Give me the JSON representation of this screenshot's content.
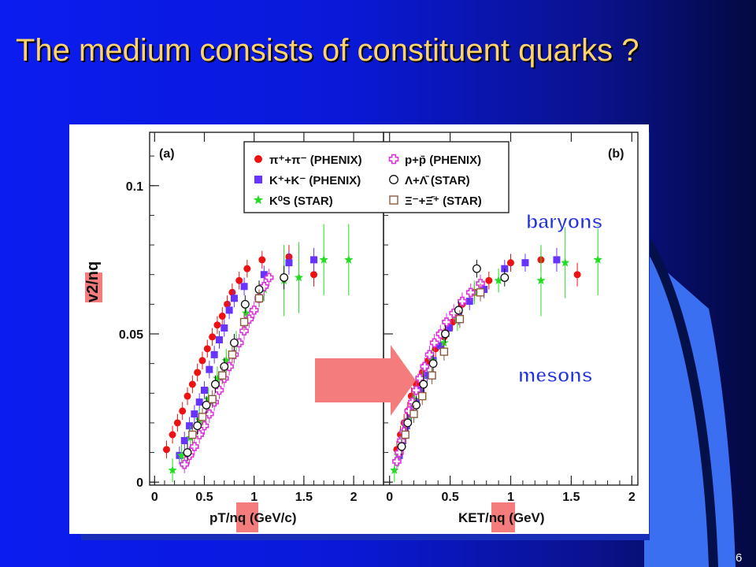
{
  "slide": {
    "title": "The medium consists of constituent quarks ?",
    "page_number": "6"
  },
  "colors": {
    "background": "#0b1cf0",
    "title": "#ffd36b",
    "pion": "#ee1111",
    "kaon": "#6633ff",
    "k0s": "#22dd22",
    "proton": "#dd33dd",
    "lambda": "#111111",
    "xi": "#8b5a3c",
    "highlight": "#f47c7c",
    "label": "#2233dd"
  },
  "chart_data": [
    {
      "panel_label": "(a)",
      "type": "scatter",
      "xlabel": "pT/nq (GeV/c)",
      "ylabel": "v2/nq",
      "xlim": [
        -0.05,
        2.3
      ],
      "ylim": [
        -0.001,
        0.118
      ],
      "x_ticks": [
        "0",
        "0.5",
        "1",
        "1.5",
        "2"
      ],
      "y_ticks": [
        "0",
        "0.05",
        "0.1"
      ],
      "grid": false,
      "legend_position": "top",
      "legend": [
        "π⁺+π⁻ (PHENIX)",
        "p+p̄ (PHENIX)",
        "K⁺+K⁻ (PHENIX)",
        "Λ+Λ̄ (STAR)",
        "K⁰S (STAR)",
        "Ξ⁻+Ξ̄⁺ (STAR)"
      ],
      "series": [
        {
          "name": "π⁺+π⁻ (PHENIX)",
          "marker": "circle",
          "x": [
            0.12,
            0.18,
            0.23,
            0.28,
            0.33,
            0.38,
            0.43,
            0.48,
            0.53,
            0.58,
            0.63,
            0.68,
            0.73,
            0.78,
            0.85,
            0.93,
            1.08,
            1.35,
            1.6
          ],
          "y": [
            0.011,
            0.016,
            0.02,
            0.024,
            0.029,
            0.033,
            0.037,
            0.041,
            0.045,
            0.049,
            0.053,
            0.056,
            0.06,
            0.064,
            0.068,
            0.072,
            0.075,
            0.076,
            0.07
          ]
        },
        {
          "name": "K⁺+K⁻ (PHENIX)",
          "marker": "square",
          "x": [
            0.25,
            0.3,
            0.35,
            0.4,
            0.45,
            0.5,
            0.55,
            0.6,
            0.65,
            0.7,
            0.75,
            0.8,
            0.9,
            1.1,
            1.35,
            1.6
          ],
          "y": [
            0.009,
            0.014,
            0.019,
            0.023,
            0.027,
            0.031,
            0.038,
            0.043,
            0.048,
            0.052,
            0.058,
            0.062,
            0.066,
            0.07,
            0.074,
            0.075
          ]
        },
        {
          "name": "K⁰S (STAR)",
          "marker": "star",
          "x": [
            0.18,
            0.27,
            0.36,
            0.45,
            0.54,
            0.63,
            0.72,
            0.82,
            0.92,
            1.1,
            1.3,
            1.45,
            1.7,
            1.95
          ],
          "y": [
            0.004,
            0.009,
            0.015,
            0.021,
            0.028,
            0.035,
            0.041,
            0.047,
            0.057,
            0.065,
            0.068,
            0.069,
            0.075,
            0.075
          ]
        },
        {
          "name": "p+p̄ (PHENIX)",
          "marker": "cross",
          "x": [
            0.3,
            0.35,
            0.4,
            0.45,
            0.5,
            0.55,
            0.6,
            0.65,
            0.7,
            0.75,
            0.8,
            0.85,
            0.9,
            0.95,
            1.0,
            1.05,
            1.1,
            1.15
          ],
          "y": [
            0.006,
            0.009,
            0.012,
            0.016,
            0.019,
            0.023,
            0.027,
            0.031,
            0.035,
            0.039,
            0.043,
            0.047,
            0.051,
            0.055,
            0.058,
            0.062,
            0.066,
            0.069
          ]
        },
        {
          "name": "Λ+Λ̄ (STAR)",
          "marker": "circle-open",
          "x": [
            0.33,
            0.43,
            0.52,
            0.61,
            0.7,
            0.8,
            0.91,
            1.05,
            1.3
          ],
          "y": [
            0.01,
            0.019,
            0.026,
            0.033,
            0.039,
            0.047,
            0.06,
            0.065,
            0.069
          ]
        },
        {
          "name": "Ξ⁻+Ξ̄⁺ (STAR)",
          "marker": "square-open",
          "x": [
            0.38,
            0.48,
            0.58,
            0.68,
            0.78,
            0.9,
            1.05
          ],
          "y": [
            0.016,
            0.022,
            0.028,
            0.036,
            0.043,
            0.054,
            0.062
          ]
        }
      ]
    },
    {
      "panel_label": "(b)",
      "type": "scatter",
      "xlabel": "KET/nq (GeV)",
      "ylabel": "",
      "xlim": [
        -0.05,
        2.05
      ],
      "ylim": [
        -0.001,
        0.118
      ],
      "x_ticks": [
        "0",
        "0.5",
        "1",
        "1.5",
        "2"
      ],
      "annotations": [
        "baryons",
        "mesons"
      ],
      "series": [
        {
          "name": "π⁺+π⁻ (PHENIX)",
          "marker": "circle",
          "x": [
            0.06,
            0.09,
            0.12,
            0.15,
            0.18,
            0.22,
            0.27,
            0.32,
            0.38,
            0.45,
            0.52,
            0.6,
            0.7,
            0.82,
            1.0,
            1.25,
            1.55
          ],
          "y": [
            0.011,
            0.016,
            0.02,
            0.024,
            0.029,
            0.033,
            0.037,
            0.041,
            0.045,
            0.049,
            0.054,
            0.06,
            0.064,
            0.068,
            0.074,
            0.075,
            0.07
          ]
        },
        {
          "name": "K⁺+K⁻ (PHENIX)",
          "marker": "square",
          "x": [
            0.08,
            0.11,
            0.14,
            0.18,
            0.22,
            0.26,
            0.31,
            0.36,
            0.42,
            0.49,
            0.57,
            0.66,
            0.78,
            0.95,
            1.12,
            1.38
          ],
          "y": [
            0.009,
            0.014,
            0.019,
            0.023,
            0.027,
            0.031,
            0.036,
            0.041,
            0.046,
            0.052,
            0.056,
            0.061,
            0.065,
            0.072,
            0.074,
            0.075
          ]
        },
        {
          "name": "K⁰S (STAR)",
          "marker": "star",
          "x": [
            0.04,
            0.07,
            0.11,
            0.15,
            0.2,
            0.27,
            0.35,
            0.45,
            0.56,
            0.7,
            0.9,
            1.25,
            1.45,
            1.72
          ],
          "y": [
            0.004,
            0.009,
            0.015,
            0.021,
            0.028,
            0.035,
            0.041,
            0.047,
            0.055,
            0.064,
            0.068,
            0.068,
            0.074,
            0.075
          ]
        },
        {
          "name": "p+p̄ (PHENIX)",
          "marker": "cross",
          "x": [
            0.06,
            0.08,
            0.1,
            0.12,
            0.14,
            0.16,
            0.19,
            0.22,
            0.25,
            0.29,
            0.33,
            0.37,
            0.42,
            0.47,
            0.53,
            0.6,
            0.67,
            0.75
          ],
          "y": [
            0.007,
            0.01,
            0.014,
            0.017,
            0.02,
            0.024,
            0.027,
            0.031,
            0.035,
            0.039,
            0.043,
            0.047,
            0.05,
            0.054,
            0.057,
            0.061,
            0.064,
            0.067
          ]
        },
        {
          "name": "Λ+Λ̄ (STAR)",
          "marker": "circle-open",
          "x": [
            0.1,
            0.15,
            0.22,
            0.28,
            0.36,
            0.46,
            0.57,
            0.72,
            0.95
          ],
          "y": [
            0.012,
            0.02,
            0.026,
            0.033,
            0.04,
            0.05,
            0.058,
            0.072,
            0.069
          ]
        },
        {
          "name": "Ξ⁻+Ξ̄⁺ (STAR)",
          "marker": "square-open",
          "x": [
            0.13,
            0.2,
            0.27,
            0.35,
            0.45,
            0.58,
            0.75
          ],
          "y": [
            0.016,
            0.023,
            0.029,
            0.036,
            0.044,
            0.055,
            0.064
          ]
        }
      ]
    }
  ]
}
